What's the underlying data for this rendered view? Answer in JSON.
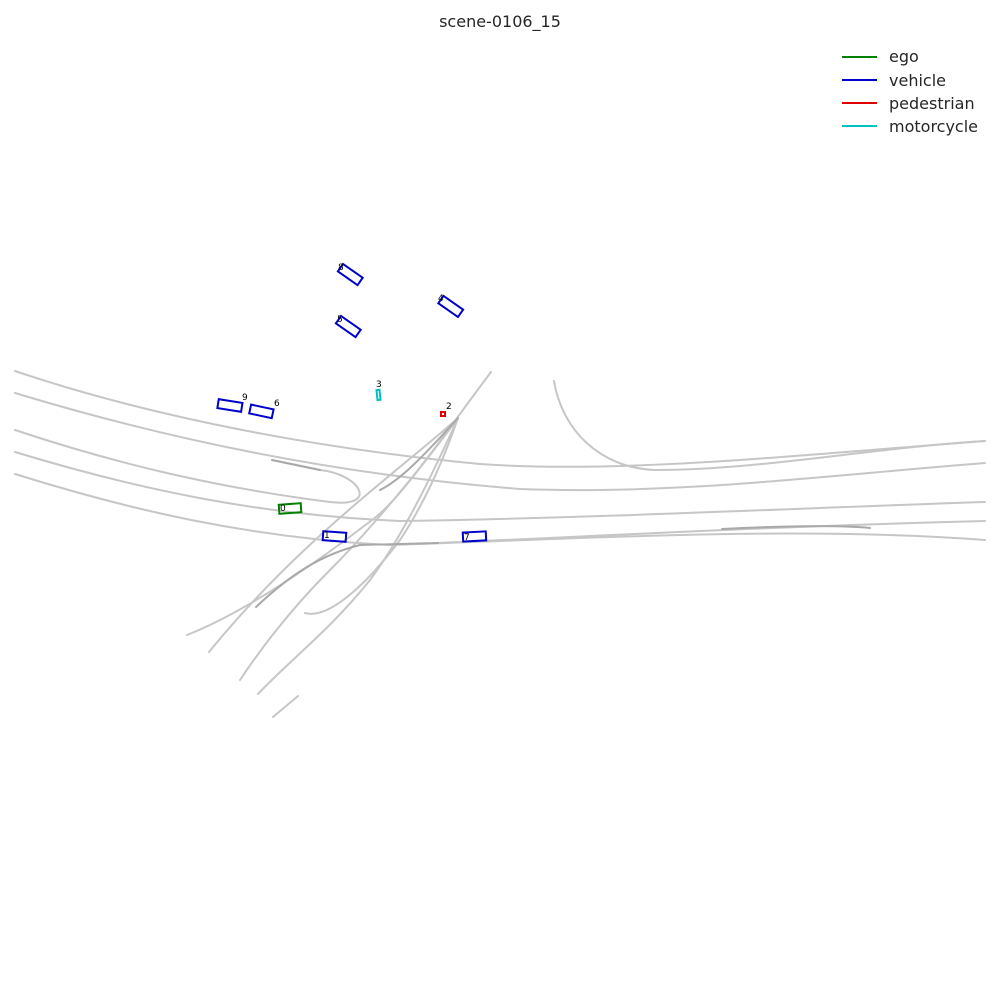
{
  "title": "scene-0106_15",
  "legend": [
    {
      "label": "ego",
      "color": "#008000"
    },
    {
      "label": "vehicle",
      "color": "#0000cc"
    },
    {
      "label": "pedestrian",
      "color": "#e00000"
    },
    {
      "label": "motorcycle",
      "color": "#00bfbf"
    }
  ],
  "agents": [
    {
      "id": "0",
      "category": "ego",
      "color": "#008000"
    },
    {
      "id": "1",
      "category": "vehicle",
      "color": "#0000cc"
    },
    {
      "id": "2",
      "category": "pedestrian",
      "color": "#e00000"
    },
    {
      "id": "3",
      "category": "motorcycle",
      "color": "#00bfbf"
    },
    {
      "id": "4",
      "category": "vehicle",
      "color": "#0000cc"
    },
    {
      "id": "5",
      "category": "vehicle",
      "color": "#0000cc"
    },
    {
      "id": "6",
      "category": "vehicle",
      "color": "#0000cc"
    },
    {
      "id": "7",
      "category": "vehicle",
      "color": "#0000cc"
    },
    {
      "id": "8",
      "category": "vehicle",
      "color": "#0000cc"
    },
    {
      "id": "9",
      "category": "vehicle",
      "color": "#0000cc"
    }
  ]
}
